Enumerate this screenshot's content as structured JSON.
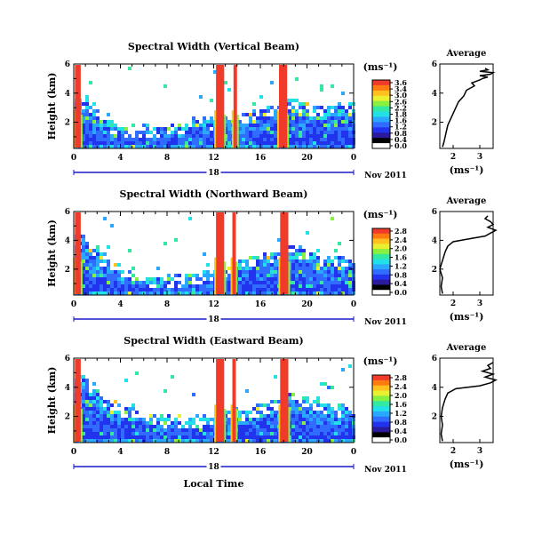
{
  "colors": {
    "axis": "#000000",
    "date_bar": "#1a1acc",
    "colormap": [
      "#ffffff",
      "#000000",
      "#2a1aa0",
      "#2233ee",
      "#2f6cff",
      "#2aa8ff",
      "#22e0e8",
      "#33e8a0",
      "#88f040",
      "#e8f030",
      "#ffc020",
      "#ff7a10",
      "#f03a2a"
    ]
  },
  "shared": {
    "x_ticks": [
      "0",
      "4",
      "8",
      "12",
      "16",
      "20",
      "0"
    ],
    "date_day": "18",
    "date_label": "Nov 2011",
    "xlabel": "Local Time",
    "ylabel": "Height (km)",
    "y_ticks": [
      "6",
      "4",
      "2"
    ],
    "cbar_unit": "(ms⁻¹)",
    "avg_title": "Average",
    "avg_xlabel": "(ms⁻¹)",
    "avg_x_ticks": [
      "2",
      "3"
    ],
    "avg_y_ticks": [
      "6",
      "4",
      "2"
    ]
  },
  "chart_data": [
    {
      "type": "heatmap",
      "title": "Spectral Width (Vertical Beam)",
      "xlim": [
        0,
        24
      ],
      "ylim": [
        0.2,
        6
      ],
      "colorbar_ticks": [
        "3.6",
        "3.4",
        "3.0",
        "2.6",
        "2.2",
        "1.8",
        "1.6",
        "1.2",
        "0.8",
        "0.4",
        "0.0"
      ],
      "clim": [
        0,
        3.6
      ],
      "rain_bands": [
        [
          0.1,
          0.6
        ],
        [
          12.2,
          12.9
        ],
        [
          13.7,
          14.0
        ],
        [
          17.6,
          18.3
        ]
      ],
      "cloud_top_km": [
        3.7,
        3.1,
        2.2,
        1.9,
        1.7,
        1.6,
        1.6,
        1.7,
        1.8,
        1.9,
        2.1,
        2.2,
        2.5,
        2.3,
        2.6,
        2.8,
        3.0,
        3.2,
        3.4,
        3.3,
        3.2,
        3.0,
        3.3,
        3.1,
        2.7
      ],
      "average_profile": {
        "xlim": [
          1.5,
          3.5
        ],
        "ylim": [
          0.2,
          6
        ],
        "height_km": [
          0.3,
          0.6,
          1.0,
          1.4,
          1.8,
          2.2,
          2.6,
          3.0,
          3.4,
          3.8,
          4.2,
          4.5,
          4.7,
          4.9,
          5.0,
          5.1,
          5.2,
          5.3,
          5.4,
          5.5,
          5.6,
          5.7
        ],
        "width_ms": [
          1.6,
          1.65,
          1.7,
          1.75,
          1.8,
          1.9,
          2.0,
          2.1,
          2.2,
          2.4,
          2.5,
          2.8,
          2.7,
          3.0,
          3.1,
          3.3,
          3.0,
          3.4,
          3.5,
          3.0,
          3.3,
          3.2
        ]
      }
    },
    {
      "type": "heatmap",
      "title": "Spectral Width (Northward Beam)",
      "xlim": [
        0,
        24
      ],
      "ylim": [
        0.2,
        6
      ],
      "colorbar_ticks": [
        "2.8",
        "2.4",
        "2.0",
        "1.6",
        "1.2",
        "0.8",
        "0.4",
        "0.0"
      ],
      "clim": [
        0,
        2.8
      ],
      "rain_bands": [
        [
          0.1,
          0.6
        ],
        [
          12.2,
          12.9
        ],
        [
          13.6,
          13.9
        ],
        [
          17.7,
          18.4
        ]
      ],
      "cloud_top_km": [
        4.2,
        3.6,
        3.0,
        2.6,
        2.0,
        1.8,
        1.5,
        1.4,
        1.5,
        1.6,
        1.7,
        1.9,
        2.2,
        2.3,
        2.6,
        2.8,
        3.0,
        3.4,
        3.6,
        3.5,
        3.2,
        2.8,
        2.9,
        2.6,
        2.4
      ],
      "average_profile": {
        "xlim": [
          1.5,
          3.5
        ],
        "ylim": [
          0.2,
          6
        ],
        "height_km": [
          0.3,
          0.8,
          1.4,
          2.0,
          2.6,
          3.2,
          3.6,
          3.9,
          4.1,
          4.3,
          4.5,
          4.7,
          4.9,
          5.1,
          5.3,
          5.5,
          5.7
        ],
        "width_ms": [
          1.6,
          1.55,
          1.6,
          1.5,
          1.6,
          1.7,
          1.8,
          2.0,
          2.6,
          3.2,
          3.4,
          3.6,
          3.3,
          3.5,
          3.4,
          3.2,
          3.3
        ]
      }
    },
    {
      "type": "heatmap",
      "title": "Spectral Width (Eastward Beam)",
      "xlim": [
        0,
        24
      ],
      "ylim": [
        0.2,
        6
      ],
      "colorbar_ticks": [
        "2.8",
        "2.4",
        "2.0",
        "1.6",
        "1.2",
        "0.8",
        "0.4",
        "0.0"
      ],
      "clim": [
        0,
        2.8
      ],
      "rain_bands": [
        [
          0.1,
          0.6
        ],
        [
          12.2,
          12.9
        ],
        [
          13.6,
          13.9
        ],
        [
          17.7,
          18.4
        ]
      ],
      "cloud_top_km": [
        4.6,
        4.0,
        3.4,
        3.0,
        2.6,
        2.4,
        2.2,
        2.0,
        1.9,
        1.8,
        1.9,
        2.0,
        2.2,
        2.3,
        2.5,
        2.7,
        2.9,
        3.2,
        3.5,
        3.3,
        3.0,
        2.8,
        2.6,
        2.4,
        2.2
      ],
      "average_profile": {
        "xlim": [
          1.5,
          3.5
        ],
        "ylim": [
          0.2,
          6
        ],
        "height_km": [
          0.3,
          0.8,
          1.4,
          2.0,
          2.6,
          3.2,
          3.6,
          3.9,
          4.1,
          4.3,
          4.5,
          4.7,
          4.9,
          5.1,
          5.3,
          5.5,
          5.7
        ],
        "width_ms": [
          1.6,
          1.55,
          1.6,
          1.55,
          1.6,
          1.7,
          1.8,
          2.1,
          3.0,
          3.4,
          3.6,
          3.2,
          3.5,
          3.1,
          3.4,
          3.3,
          3.5
        ]
      }
    }
  ]
}
